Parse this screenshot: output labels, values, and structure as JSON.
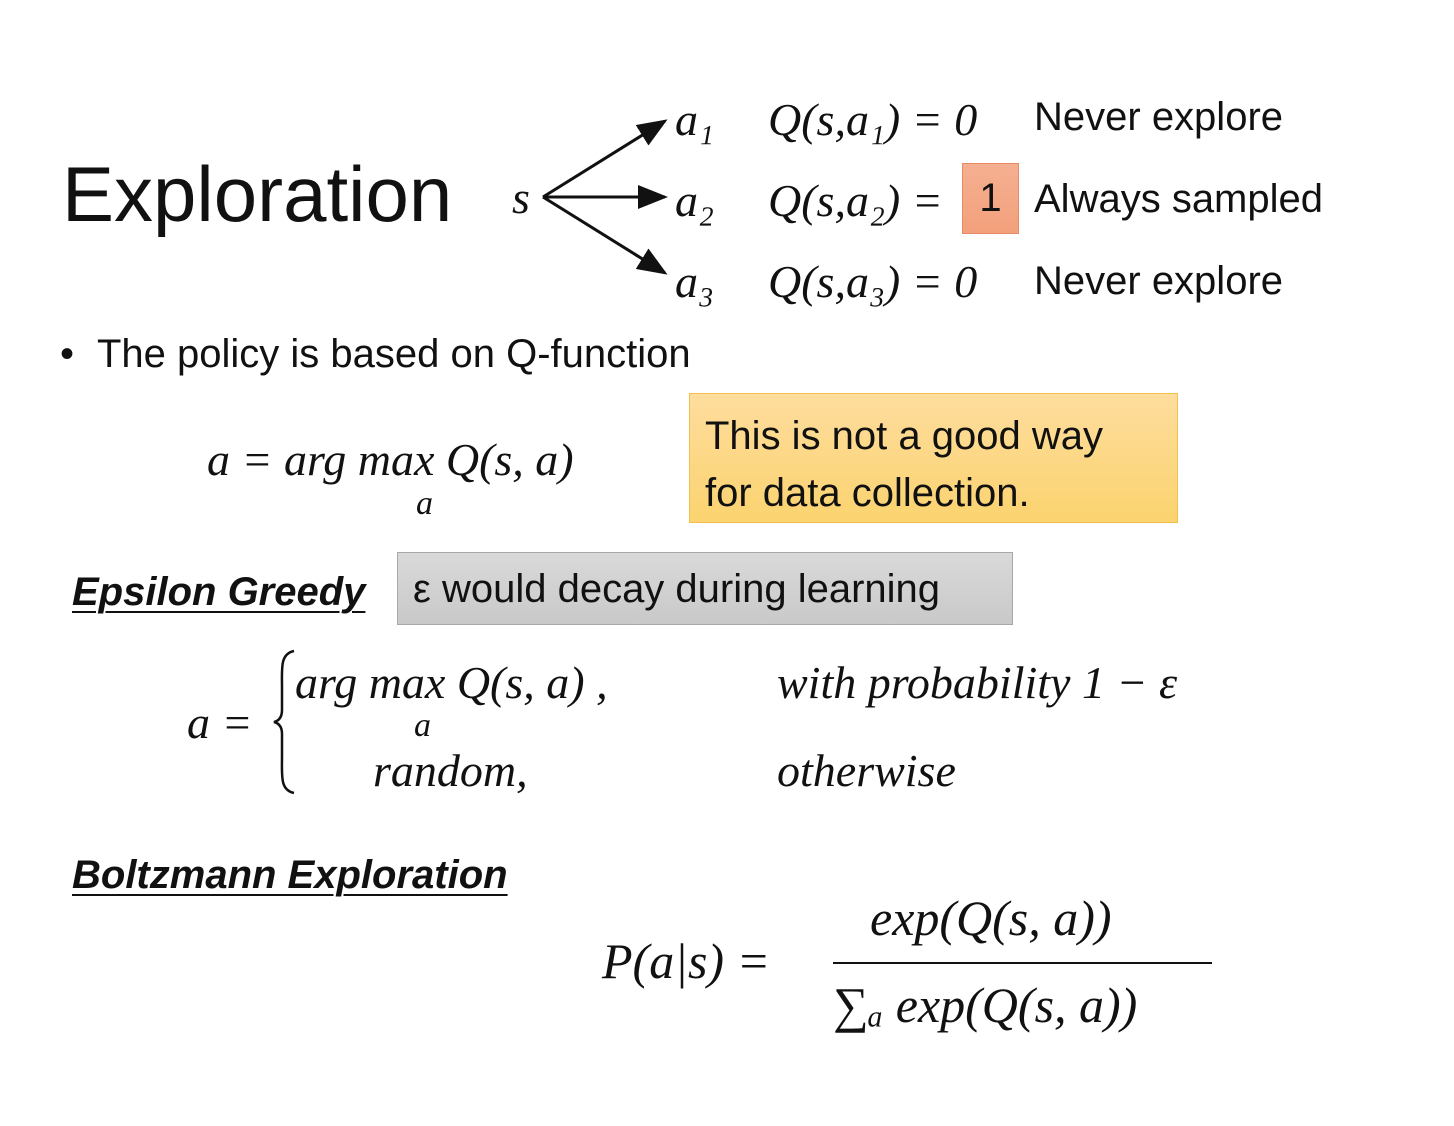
{
  "title": "Exploration",
  "diagram": {
    "state": "s",
    "actions": [
      {
        "action": "a₁",
        "q": "Q(s,a₁) = 0",
        "value": "",
        "note": "Never explore"
      },
      {
        "action": "a₂",
        "q": "Q(s,a₂) =",
        "value": "1",
        "note": "Always sampled"
      },
      {
        "action": "a₃",
        "q": "Q(s,a₃) = 0",
        "value": "",
        "note": "Never explore"
      }
    ],
    "highlight_color": "#f4a582"
  },
  "bullet": "The policy is based on Q-function",
  "greedy_formula": {
    "main": "a = arg max Q(s, a)",
    "sub": "a"
  },
  "callout_yellow": {
    "line1": "This is not a good way",
    "line2": "for data collection.",
    "color": "#fdd886"
  },
  "epsilon": {
    "heading": "Epsilon Greedy",
    "callout": "ε would decay during learning",
    "lhs": "a =",
    "case1": "arg max Q(s, a) ,",
    "case1_sub": "a",
    "case2": "random,",
    "cond1": "with probability 1 − ε",
    "cond2": "otherwise"
  },
  "boltzmann": {
    "heading": "Boltzmann Exploration",
    "lhs": "P(a|s) =",
    "numerator": "exp(Q(s, a))",
    "denominator": "∑ₐ exp(Q(s, a))"
  }
}
